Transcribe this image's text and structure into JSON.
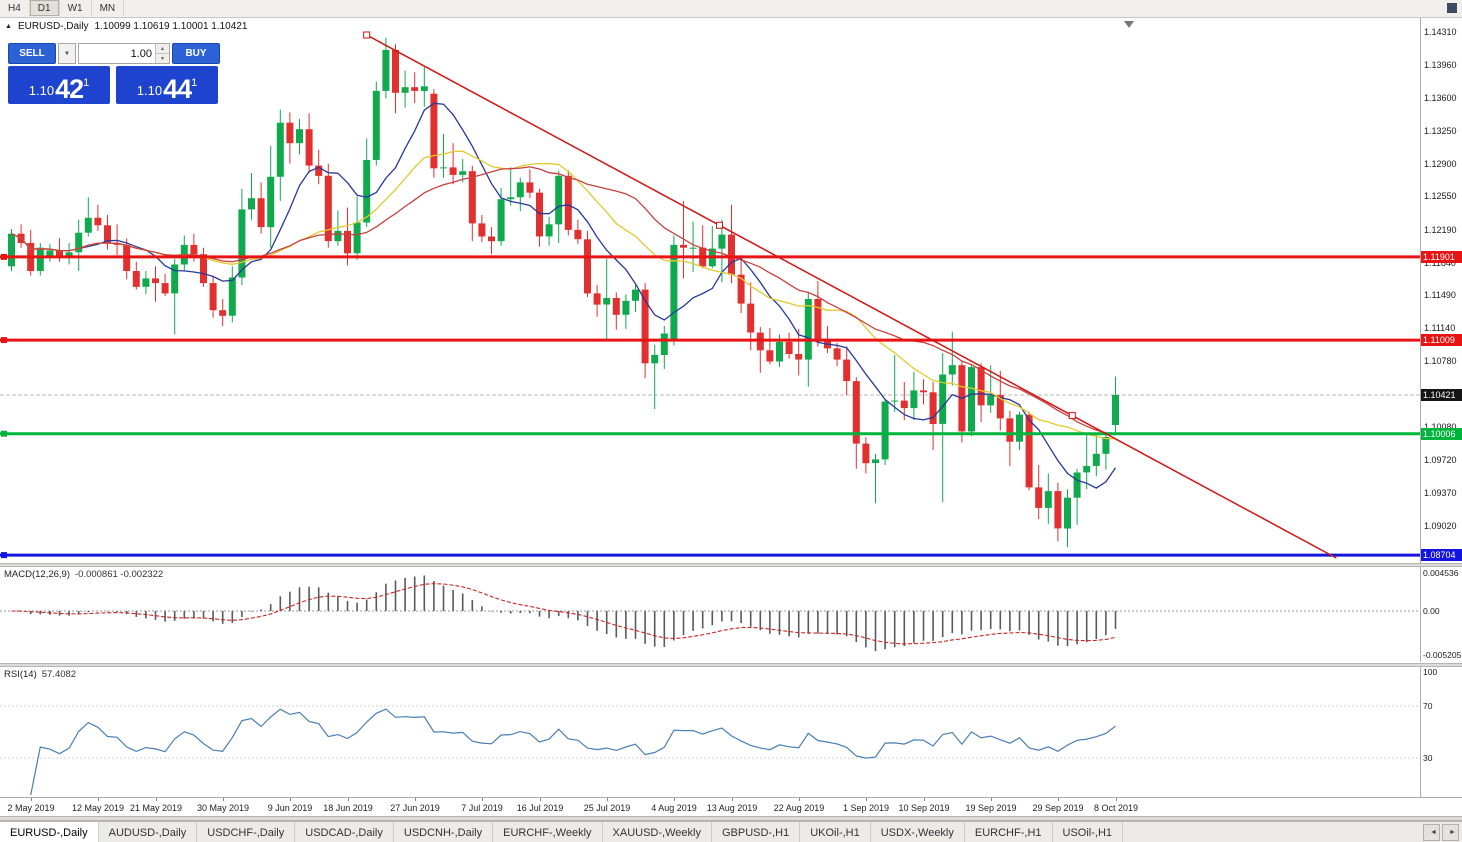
{
  "icons": {
    "symbol_marker": "▲",
    "dropdown": "▼",
    "spin_up": "▲",
    "spin_down": "▼",
    "tab_prev": "◄",
    "tab_next": "►"
  },
  "toolbar": {
    "timeframes": [
      {
        "label": "H4",
        "active": false
      },
      {
        "label": "D1",
        "active": true
      },
      {
        "label": "W1",
        "active": false
      },
      {
        "label": "MN",
        "active": false
      }
    ]
  },
  "chart_header": {
    "symbol": "EURUSD-,Daily",
    "ohlc": "1.10099 1.10619 1.10001 1.10421"
  },
  "trade_widget": {
    "sell_label": "SELL",
    "buy_label": "BUY",
    "volume": "1.00",
    "sell_price": {
      "base": "1.10",
      "big": "42",
      "sup": "1"
    },
    "buy_price": {
      "base": "1.10",
      "big": "44",
      "sup": "1"
    }
  },
  "price_axis": {
    "ticks": [
      "1.14310",
      "1.13960",
      "1.13600",
      "1.13250",
      "1.12900",
      "1.12550",
      "1.12190",
      "1.11840",
      "1.11490",
      "1.11140",
      "1.10780",
      "1.10080",
      "1.09720",
      "1.09370",
      "1.09020"
    ]
  },
  "current_price": {
    "value": 1.10421,
    "label": "1.10421",
    "label_bg": "#151515"
  },
  "lines": [
    {
      "name": "resistance-line-upper",
      "value": 1.11901,
      "label": "1.11901",
      "color": "#e81414",
      "width": 3
    },
    {
      "name": "resistance-line-lower",
      "value": 1.11009,
      "label": "1.11009",
      "color": "#e81414",
      "width": 3
    },
    {
      "name": "support-line-green",
      "value": 1.10006,
      "label": "1.10006",
      "color": "#00b43c",
      "width": 3
    },
    {
      "name": "support-line-blue",
      "value": 1.08704,
      "label": "1.08704",
      "color": "#1414e0",
      "width": 3
    }
  ],
  "trendline": {
    "i1": 37,
    "p1": 1.1428,
    "i2": 110.5,
    "p2": 1.102,
    "i_end": 138,
    "color": "#cf1717"
  },
  "chart_data": {
    "type": "candlestick",
    "symbol": "EURUSD-",
    "timeframe": "Daily",
    "x_labels": [
      {
        "i": 2,
        "t": "2 May 2019"
      },
      {
        "i": 9,
        "t": "12 May 2019"
      },
      {
        "i": 15,
        "t": "21 May 2019"
      },
      {
        "i": 22,
        "t": "30 May 2019"
      },
      {
        "i": 29,
        "t": "9 Jun 2019"
      },
      {
        "i": 35,
        "t": "18 Jun 2019"
      },
      {
        "i": 42,
        "t": "27 Jun 2019"
      },
      {
        "i": 49,
        "t": "7 Jul 2019"
      },
      {
        "i": 55,
        "t": "16 Jul 2019"
      },
      {
        "i": 62,
        "t": "25 Jul 2019"
      },
      {
        "i": 69,
        "t": "4 Aug 2019"
      },
      {
        "i": 75,
        "t": "13 Aug 2019"
      },
      {
        "i": 82,
        "t": "22 Aug 2019"
      },
      {
        "i": 89,
        "t": "1 Sep 2019"
      },
      {
        "i": 95,
        "t": "10 Sep 2019"
      },
      {
        "i": 102,
        "t": "19 Sep 2019"
      },
      {
        "i": 109,
        "t": "29 Sep 2019"
      },
      {
        "i": 115,
        "t": "8 Oct 2019"
      }
    ],
    "candles": [
      [
        1.118,
        1.122,
        1.1175,
        1.1215
      ],
      [
        1.1215,
        1.1225,
        1.12,
        1.1205
      ],
      [
        1.1205,
        1.1219,
        1.117,
        1.1175
      ],
      [
        1.1175,
        1.1205,
        1.117,
        1.12
      ],
      [
        1.119,
        1.1204,
        1.1185,
        1.1197
      ],
      [
        1.1197,
        1.121,
        1.1185,
        1.119
      ],
      [
        1.119,
        1.1205,
        1.1182,
        1.1195
      ],
      [
        1.1195,
        1.123,
        1.1175,
        1.1216
      ],
      [
        1.1216,
        1.1254,
        1.1212,
        1.1232
      ],
      [
        1.1232,
        1.1246,
        1.1218,
        1.1224
      ],
      [
        1.1224,
        1.1235,
        1.1198,
        1.1205
      ],
      [
        1.1205,
        1.1225,
        1.1192,
        1.1203
      ],
      [
        1.1203,
        1.121,
        1.1166,
        1.1175
      ],
      [
        1.1175,
        1.1185,
        1.1155,
        1.1158
      ],
      [
        1.1158,
        1.1175,
        1.115,
        1.1167
      ],
      [
        1.1167,
        1.118,
        1.1142,
        1.1162
      ],
      [
        1.1162,
        1.1172,
        1.1148,
        1.1151
      ],
      [
        1.1151,
        1.1188,
        1.1107,
        1.1182
      ],
      [
        1.1182,
        1.1213,
        1.1175,
        1.1203
      ],
      [
        1.1203,
        1.1215,
        1.1185,
        1.1193
      ],
      [
        1.1193,
        1.12,
        1.1158,
        1.1162
      ],
      [
        1.1162,
        1.117,
        1.1125,
        1.1133
      ],
      [
        1.1133,
        1.1145,
        1.1116,
        1.1127
      ],
      [
        1.1127,
        1.118,
        1.112,
        1.1168
      ],
      [
        1.1168,
        1.1263,
        1.116,
        1.1241
      ],
      [
        1.1241,
        1.128,
        1.123,
        1.1253
      ],
      [
        1.1253,
        1.127,
        1.1215,
        1.1222
      ],
      [
        1.1222,
        1.1309,
        1.12,
        1.1276
      ],
      [
        1.1276,
        1.1348,
        1.125,
        1.1334
      ],
      [
        1.1334,
        1.1345,
        1.129,
        1.1312
      ],
      [
        1.1312,
        1.1338,
        1.13,
        1.1327
      ],
      [
        1.1327,
        1.1344,
        1.128,
        1.1288
      ],
      [
        1.1288,
        1.1305,
        1.1268,
        1.1277
      ],
      [
        1.1277,
        1.129,
        1.12,
        1.1207
      ],
      [
        1.1207,
        1.124,
        1.1202,
        1.1218
      ],
      [
        1.1218,
        1.1243,
        1.1181,
        1.1194
      ],
      [
        1.1194,
        1.1255,
        1.1187,
        1.1227
      ],
      [
        1.1227,
        1.1317,
        1.1222,
        1.1294
      ],
      [
        1.1294,
        1.1378,
        1.1288,
        1.1368
      ],
      [
        1.1368,
        1.1425,
        1.136,
        1.1412
      ],
      [
        1.1412,
        1.1418,
        1.1344,
        1.1366
      ],
      [
        1.1366,
        1.139,
        1.135,
        1.1372
      ],
      [
        1.1372,
        1.1388,
        1.1355,
        1.1368
      ],
      [
        1.1368,
        1.1394,
        1.1351,
        1.1373
      ],
      [
        1.1365,
        1.137,
        1.1275,
        1.1285
      ],
      [
        1.1285,
        1.1322,
        1.1275,
        1.1286
      ],
      [
        1.1286,
        1.1312,
        1.1268,
        1.1278
      ],
      [
        1.1278,
        1.1295,
        1.127,
        1.1282
      ],
      [
        1.1282,
        1.1288,
        1.1207,
        1.1226
      ],
      [
        1.1226,
        1.1235,
        1.1206,
        1.1212
      ],
      [
        1.1212,
        1.1222,
        1.1193,
        1.1207
      ],
      [
        1.1207,
        1.1264,
        1.1202,
        1.1252
      ],
      [
        1.1252,
        1.1286,
        1.1245,
        1.1254
      ],
      [
        1.1254,
        1.1275,
        1.1239,
        1.127
      ],
      [
        1.127,
        1.1284,
        1.1253,
        1.1259
      ],
      [
        1.1259,
        1.1263,
        1.1201,
        1.1212
      ],
      [
        1.1212,
        1.1233,
        1.1202,
        1.1225
      ],
      [
        1.1225,
        1.1282,
        1.1205,
        1.1277
      ],
      [
        1.1277,
        1.1283,
        1.1213,
        1.1219
      ],
      [
        1.1219,
        1.123,
        1.1204,
        1.1209
      ],
      [
        1.1209,
        1.1218,
        1.1147,
        1.1151
      ],
      [
        1.1151,
        1.116,
        1.1126,
        1.1139
      ],
      [
        1.1139,
        1.1188,
        1.1101,
        1.1146
      ],
      [
        1.1146,
        1.1152,
        1.1112,
        1.1128
      ],
      [
        1.1128,
        1.115,
        1.1113,
        1.1143
      ],
      [
        1.1143,
        1.1162,
        1.1131,
        1.1155
      ],
      [
        1.1155,
        1.1162,
        1.106,
        1.1076
      ],
      [
        1.1076,
        1.1096,
        1.1027,
        1.1085
      ],
      [
        1.1085,
        1.1116,
        1.107,
        1.1108
      ],
      [
        1.11,
        1.1213,
        1.1095,
        1.1203
      ],
      [
        1.1203,
        1.125,
        1.1167,
        1.12
      ],
      [
        1.12,
        1.1228,
        1.1174,
        1.12
      ],
      [
        1.12,
        1.1224,
        1.1178,
        1.118
      ],
      [
        1.118,
        1.1223,
        1.1178,
        1.1199
      ],
      [
        1.1199,
        1.123,
        1.1163,
        1.1214
      ],
      [
        1.1214,
        1.1246,
        1.1162,
        1.1171
      ],
      [
        1.1171,
        1.1192,
        1.113,
        1.114
      ],
      [
        1.114,
        1.1163,
        1.109,
        1.1109
      ],
      [
        1.1109,
        1.1115,
        1.1066,
        1.109
      ],
      [
        1.109,
        1.1114,
        1.1075,
        1.1078
      ],
      [
        1.1078,
        1.1107,
        1.1072,
        1.1099
      ],
      [
        1.1099,
        1.1109,
        1.1081,
        1.1086
      ],
      [
        1.1086,
        1.1113,
        1.1063,
        1.108
      ],
      [
        1.108,
        1.1153,
        1.1051,
        1.1145
      ],
      [
        1.1145,
        1.1164,
        1.1094,
        1.1102
      ],
      [
        1.1102,
        1.1116,
        1.1087,
        1.1092
      ],
      [
        1.1092,
        1.1098,
        1.1073,
        1.108
      ],
      [
        1.108,
        1.1094,
        1.1042,
        1.1057
      ],
      [
        1.1057,
        1.1061,
        1.0963,
        1.099
      ],
      [
        1.099,
        1.0997,
        1.0958,
        1.0969
      ],
      [
        1.0969,
        1.0979,
        1.0926,
        1.0973
      ],
      [
        1.0973,
        1.1038,
        1.0967,
        1.1035
      ],
      [
        1.1035,
        1.1085,
        1.1024,
        1.1036
      ],
      [
        1.1036,
        1.1056,
        1.1015,
        1.1028
      ],
      [
        1.1028,
        1.1067,
        1.1015,
        1.1047
      ],
      [
        1.1047,
        1.1059,
        1.1032,
        1.1045
      ],
      [
        1.1045,
        1.1056,
        1.0983,
        1.1011
      ],
      [
        1.1011,
        1.1087,
        1.0927,
        1.1064
      ],
      [
        1.1064,
        1.111,
        1.1052,
        1.1074
      ],
      [
        1.1074,
        1.1078,
        1.0991,
        1.1003
      ],
      [
        1.1003,
        1.1075,
        1.0998,
        1.1072
      ],
      [
        1.1072,
        1.1076,
        1.1013,
        1.1031
      ],
      [
        1.1031,
        1.1074,
        1.1023,
        1.1042
      ],
      [
        1.1042,
        1.1068,
        1.1004,
        1.1017
      ],
      [
        1.1017,
        1.1025,
        1.0966,
        1.0992
      ],
      [
        1.0992,
        1.1024,
        1.0983,
        1.1021
      ],
      [
        1.1021,
        1.1024,
        1.094,
        1.0943
      ],
      [
        1.0943,
        1.0967,
        1.0909,
        1.0921
      ],
      [
        1.0921,
        1.0958,
        1.0904,
        1.0939
      ],
      [
        1.0939,
        1.0948,
        1.0885,
        1.0899
      ],
      [
        1.0899,
        1.0941,
        1.0879,
        1.0932
      ],
      [
        1.0932,
        1.0963,
        1.0903,
        1.0959
      ],
      [
        1.0959,
        1.0999,
        1.0941,
        1.0966
      ],
      [
        1.0966,
        1.0999,
        1.0955,
        1.0979
      ],
      [
        1.0979,
        1.1,
        1.0962,
        1.0997
      ],
      [
        1.10099,
        1.10619,
        1.10001,
        1.10421
      ]
    ],
    "moving_averages": [
      {
        "name": "ma-fast",
        "period": 8,
        "color": "#27389b"
      },
      {
        "name": "ma-medium",
        "period": 20,
        "color": "#e0ca2e"
      },
      {
        "name": "ma-slow",
        "period": 28,
        "color": "#c94040"
      }
    ],
    "indicators": [
      {
        "name": "MACD",
        "label_name": "MACD(12,26,9)",
        "label_values": "-0.000861 -0.002322",
        "params": [
          12,
          26,
          9
        ],
        "scale_ticks": [
          "0.004536",
          "0.00",
          "-0.005205"
        ]
      },
      {
        "name": "RSI",
        "label_name": "RSI(14)",
        "label_values": "57.4082",
        "period": 14,
        "levels": [
          70,
          30
        ],
        "scale_ticks": [
          "100",
          "70",
          "30"
        ]
      }
    ]
  },
  "tabs": {
    "items": [
      {
        "label": "EURUSD-,Daily",
        "active": true
      },
      {
        "label": "AUDUSD-,Daily",
        "active": false
      },
      {
        "label": "USDCHF-,Daily",
        "active": false
      },
      {
        "label": "USDCAD-,Daily",
        "active": false
      },
      {
        "label": "USDCNH-,Daily",
        "active": false
      },
      {
        "label": "EURCHF-,Weekly",
        "active": false
      },
      {
        "label": "XAUUSD-,Weekly",
        "active": false
      },
      {
        "label": "GBPUSD-,H1",
        "active": false
      },
      {
        "label": "UKOil-,H1",
        "active": false
      },
      {
        "label": "USDX-,Weekly",
        "active": false
      },
      {
        "label": "EURCHF-,H1",
        "active": false
      },
      {
        "label": "USOil-,H1",
        "active": false
      }
    ]
  },
  "colors": {
    "up": "#10a94e",
    "down": "#e23030",
    "macd_hist": "#5a5a5a",
    "macd_signal": "#cc2222",
    "rsi_line": "#4a7fb5",
    "widget_blue": "#1e44cf",
    "button_blue": "#2d61d6"
  }
}
